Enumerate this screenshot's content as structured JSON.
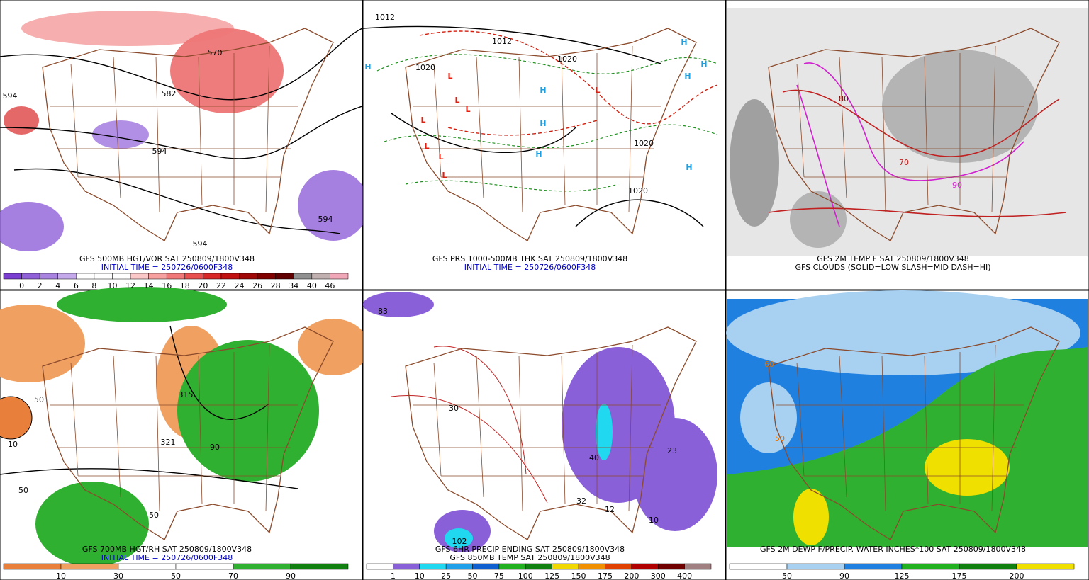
{
  "panels": [
    {
      "caption": [
        {
          "text": "GFS 500MB HGT/VOR SAT 250809/1800V348",
          "color": "#000000"
        },
        {
          "text": "INITIAL TIME = 250726/0600F348",
          "color": "#0000c0"
        }
      ],
      "colorbar": {
        "labels": [
          0,
          2,
          4,
          6,
          8,
          10,
          12,
          14,
          16,
          18,
          20,
          22,
          24,
          26,
          28,
          34,
          40,
          46
        ],
        "colors": [
          "#7a3fd0",
          "#9060d8",
          "#a884e0",
          "#c4aaea",
          "#ffffff",
          "#ffffff",
          "#ffffff",
          "#fbc8c8",
          "#f6a0a0",
          "#f07878",
          "#e85050",
          "#d82828",
          "#c01010",
          "#a00808",
          "#800000",
          "#600000",
          "#909090",
          "#c0b0b0",
          "#f0a8b8"
        ]
      },
      "map_labels": [
        {
          "text": "570",
          "color": "#000000"
        },
        {
          "text": "582",
          "color": "#000000"
        },
        {
          "text": "594",
          "color": "#000000"
        },
        {
          "text": "594",
          "color": "#000000"
        },
        {
          "text": "594",
          "color": "#000000"
        },
        {
          "text": "594",
          "color": "#000000"
        }
      ]
    },
    {
      "caption": [
        {
          "text": "GFS PRS 1000-500MB THK SAT 250809/1800V348",
          "color": "#000000"
        },
        {
          "text": "INITIAL TIME = 250726/0600F348",
          "color": "#0000c0"
        }
      ],
      "map_labels": [
        {
          "text": "1012",
          "color": "#000000"
        },
        {
          "text": "1012",
          "color": "#000000"
        },
        {
          "text": "1020",
          "color": "#000000"
        },
        {
          "text": "1020",
          "color": "#000000"
        },
        {
          "text": "1020",
          "color": "#000000"
        },
        {
          "text": "1020",
          "color": "#000000"
        },
        {
          "text": "H",
          "color": "#1ea0e0"
        },
        {
          "text": "L",
          "color": "#e02010"
        },
        {
          "text": "L",
          "color": "#e02010"
        },
        {
          "text": "L",
          "color": "#e02010"
        },
        {
          "text": "L",
          "color": "#e02010"
        },
        {
          "text": "L",
          "color": "#e02010"
        },
        {
          "text": "L",
          "color": "#e02010"
        },
        {
          "text": "L",
          "color": "#e02010"
        },
        {
          "text": "H",
          "color": "#1ea0e0"
        },
        {
          "text": "H",
          "color": "#1ea0e0"
        },
        {
          "text": "H",
          "color": "#1ea0e0"
        },
        {
          "text": "H",
          "color": "#1ea0e0"
        },
        {
          "text": "H",
          "color": "#1ea0e0"
        },
        {
          "text": "H",
          "color": "#1ea0e0"
        },
        {
          "text": "H",
          "color": "#1ea0e0"
        },
        {
          "text": "L",
          "color": "#e02010"
        }
      ]
    },
    {
      "caption": [
        {
          "text": "GFS 2M TEMP F SAT 250809/1800V348",
          "color": "#000000"
        },
        {
          "text": "GFS CLOUDS (SOLID=LOW SLASH=MID DASH=HI)",
          "color": "#000000"
        }
      ],
      "map_labels": [
        {
          "text": "70",
          "color": "#c02020"
        },
        {
          "text": "80",
          "color": "#800000"
        },
        {
          "text": "90",
          "color": "#d020d0"
        }
      ]
    },
    {
      "caption": [
        {
          "text": "GFS 700MB HGT/RH SAT 250809/1800V348",
          "color": "#000000"
        },
        {
          "text": "INITIAL TIME = 250726/0600F348",
          "color": "#0000c0"
        }
      ],
      "colorbar": {
        "labels": [
          10,
          30,
          50,
          70,
          90
        ],
        "colors": [
          "#e8803c",
          "#f0a060",
          "#ffffff",
          "#ffffff",
          "#30b030",
          "#108010"
        ]
      },
      "map_labels": [
        {
          "text": "315",
          "color": "#000000"
        },
        {
          "text": "321",
          "color": "#000000"
        },
        {
          "text": "50",
          "color": "#000000"
        },
        {
          "text": "10",
          "color": "#000000"
        },
        {
          "text": "50",
          "color": "#000000"
        },
        {
          "text": "50",
          "color": "#000000"
        },
        {
          "text": "90",
          "color": "#000000"
        }
      ]
    },
    {
      "caption": [
        {
          "text": "GFS 6HR PRECIP ENDING SAT 250809/1800V348",
          "color": "#000000"
        },
        {
          "text": "GFS 850MB TEMP SAT 250809/1800V348",
          "color": "#000000"
        }
      ],
      "colorbar": {
        "labels": [
          1,
          10,
          25,
          50,
          75,
          100,
          125,
          150,
          175,
          200,
          300,
          400
        ],
        "colors": [
          "#ffffff",
          "#8a60d8",
          "#20d8f0",
          "#20a0e8",
          "#1060d0",
          "#20b020",
          "#108010",
          "#f0d800",
          "#f09000",
          "#e04000",
          "#b00000",
          "#700000",
          "#a08080"
        ]
      },
      "map_labels": [
        {
          "text": "30",
          "color": "#000000"
        },
        {
          "text": "40",
          "color": "#000000"
        },
        {
          "text": "32",
          "color": "#000000"
        },
        {
          "text": "12",
          "color": "#000000"
        },
        {
          "text": "10",
          "color": "#000000"
        },
        {
          "text": "23",
          "color": "#000000"
        },
        {
          "text": "102",
          "color": "#000000"
        },
        {
          "text": "83",
          "color": "#000000"
        }
      ]
    },
    {
      "caption": [
        {
          "text": "GFS 2M DEWP F/PRECIP. WATER INCHES*100 SAT 250809/1800V348",
          "color": "#000000"
        }
      ],
      "colorbar": {
        "labels": [
          50,
          90,
          125,
          175,
          200
        ],
        "colors": [
          "#ffffff",
          "#a8d0f0",
          "#2080e0",
          "#20b020",
          "#108010",
          "#f0e000"
        ]
      },
      "map_labels": [
        {
          "text": "60",
          "color": "#e07000"
        },
        {
          "text": "50",
          "color": "#e07000"
        }
      ]
    }
  ]
}
